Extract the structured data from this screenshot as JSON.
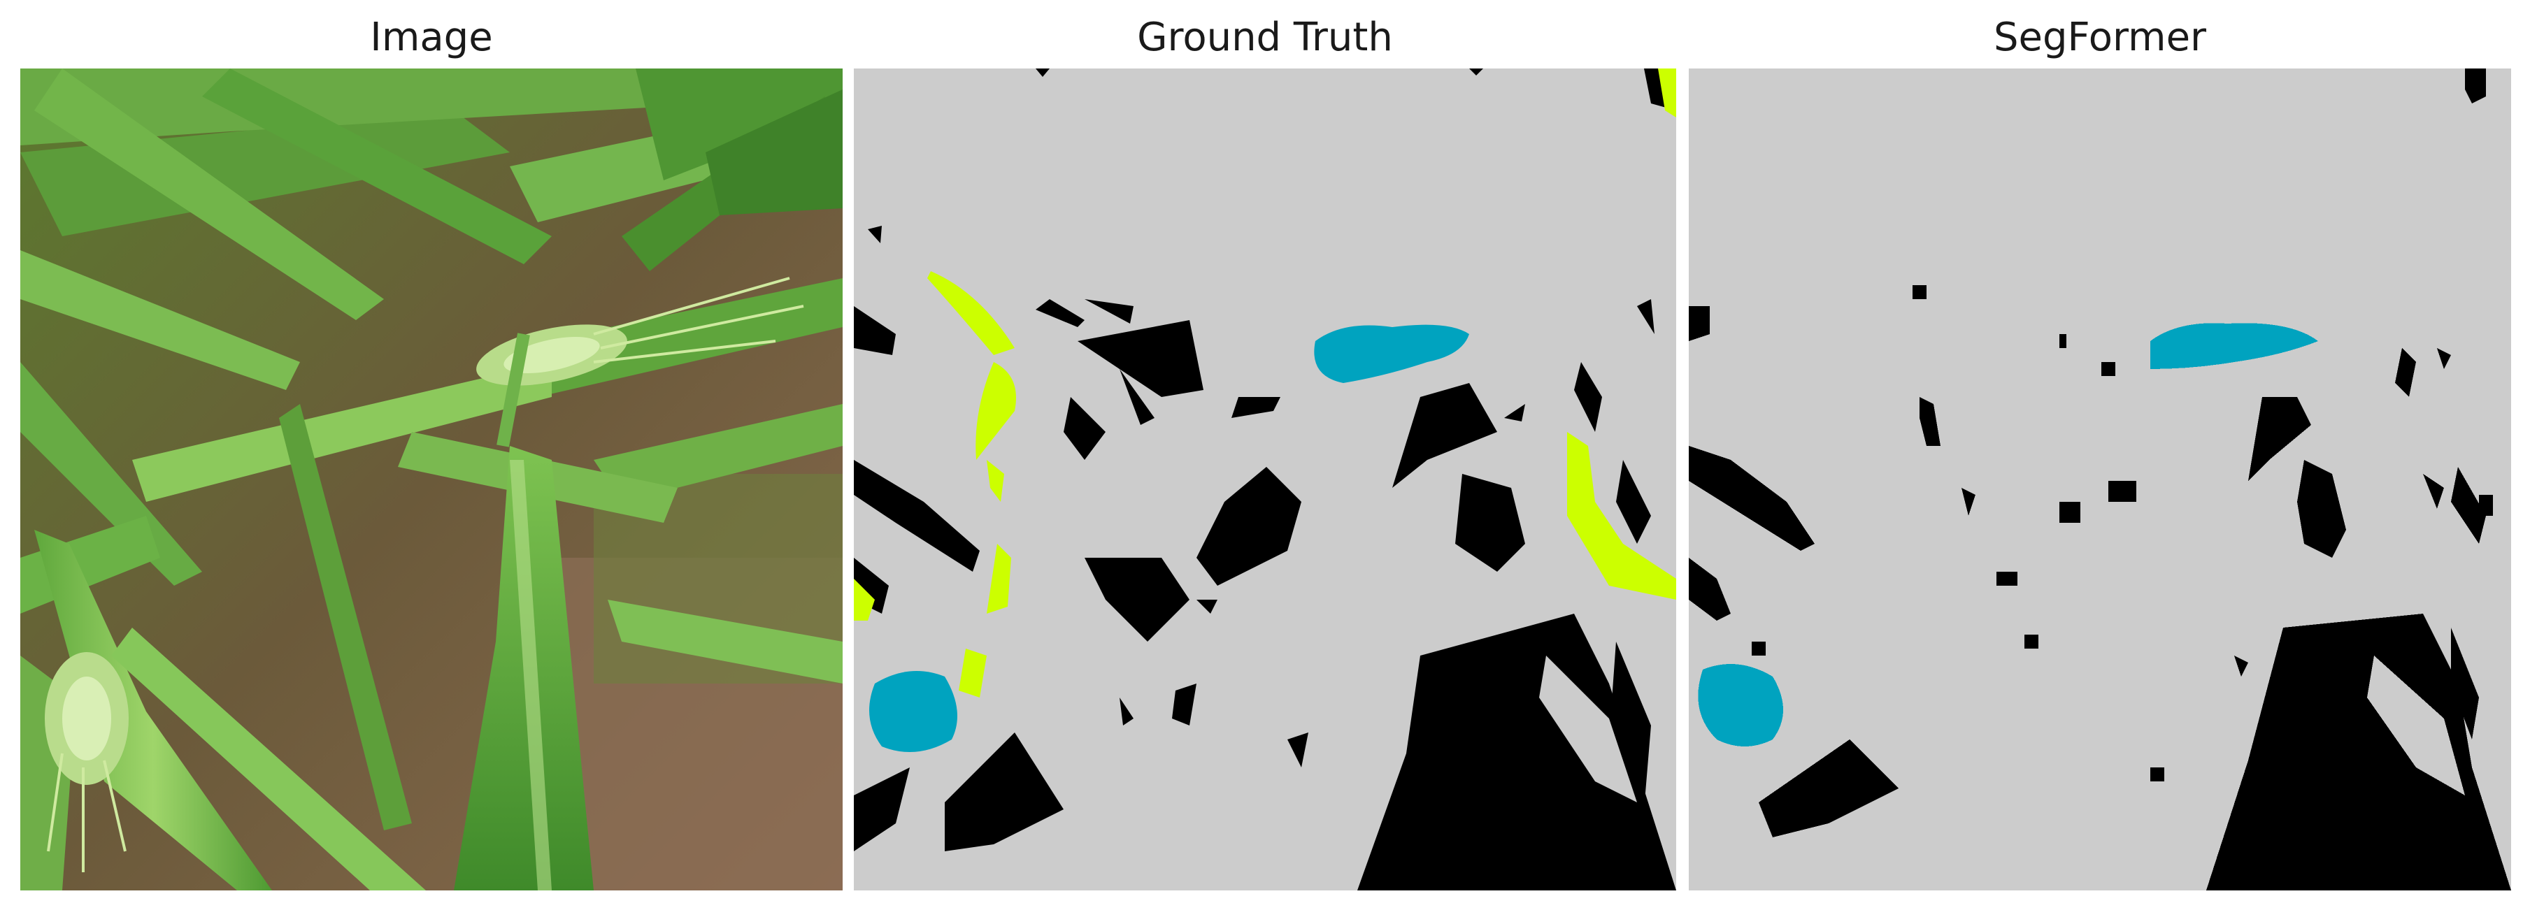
{
  "panels": [
    {
      "title": "Image"
    },
    {
      "title": "Ground Truth"
    },
    {
      "title": "SegFormer"
    }
  ],
  "colors": {
    "background_class": "#cccccc",
    "leaf_class": "#000000",
    "ear_class": "#00a3bf",
    "stem_class": "#ccff00"
  }
}
